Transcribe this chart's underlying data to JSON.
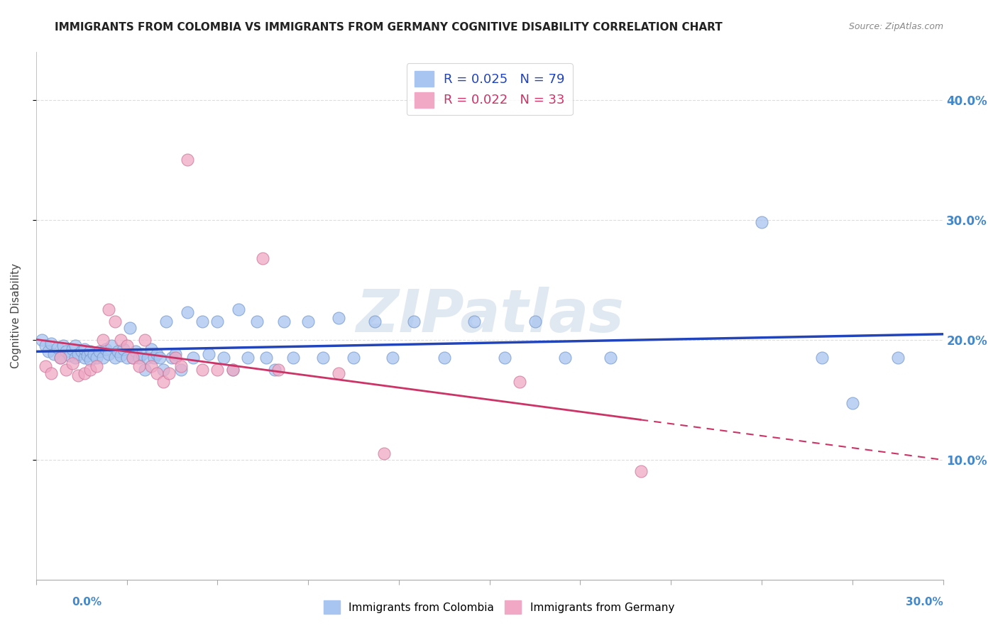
{
  "title": "IMMIGRANTS FROM COLOMBIA VS IMMIGRANTS FROM GERMANY COGNITIVE DISABILITY CORRELATION CHART",
  "source": "Source: ZipAtlas.com",
  "ylabel": "Cognitive Disability",
  "ytick_labels": [
    "10.0%",
    "20.0%",
    "30.0%",
    "40.0%"
  ],
  "ytick_values": [
    0.1,
    0.2,
    0.3,
    0.4
  ],
  "xlim": [
    0.0,
    0.3
  ],
  "ylim": [
    0.0,
    0.44
  ],
  "legend_colombia": "R = 0.025   N = 79",
  "legend_germany": "R = 0.022   N = 33",
  "colombia_color": "#a8c4f0",
  "germany_color": "#f0a8c4",
  "colombia_line_color": "#2244bb",
  "germany_line_color": "#cc3366",
  "colombia_scatter": [
    [
      0.002,
      0.2
    ],
    [
      0.003,
      0.195
    ],
    [
      0.004,
      0.19
    ],
    [
      0.005,
      0.197
    ],
    [
      0.006,
      0.188
    ],
    [
      0.007,
      0.193
    ],
    [
      0.008,
      0.185
    ],
    [
      0.009,
      0.195
    ],
    [
      0.01,
      0.19
    ],
    [
      0.011,
      0.187
    ],
    [
      0.012,
      0.192
    ],
    [
      0.013,
      0.185
    ],
    [
      0.013,
      0.195
    ],
    [
      0.014,
      0.188
    ],
    [
      0.015,
      0.19
    ],
    [
      0.016,
      0.185
    ],
    [
      0.016,
      0.192
    ],
    [
      0.017,
      0.187
    ],
    [
      0.018,
      0.19
    ],
    [
      0.018,
      0.183
    ],
    [
      0.019,
      0.188
    ],
    [
      0.02,
      0.185
    ],
    [
      0.021,
      0.19
    ],
    [
      0.022,
      0.185
    ],
    [
      0.023,
      0.192
    ],
    [
      0.024,
      0.188
    ],
    [
      0.025,
      0.195
    ],
    [
      0.026,
      0.185
    ],
    [
      0.027,
      0.19
    ],
    [
      0.028,
      0.187
    ],
    [
      0.029,
      0.192
    ],
    [
      0.03,
      0.185
    ],
    [
      0.031,
      0.21
    ],
    [
      0.032,
      0.185
    ],
    [
      0.033,
      0.19
    ],
    [
      0.034,
      0.185
    ],
    [
      0.035,
      0.188
    ],
    [
      0.036,
      0.175
    ],
    [
      0.037,
      0.185
    ],
    [
      0.038,
      0.192
    ],
    [
      0.039,
      0.185
    ],
    [
      0.04,
      0.188
    ],
    [
      0.041,
      0.185
    ],
    [
      0.042,
      0.175
    ],
    [
      0.043,
      0.215
    ],
    [
      0.045,
      0.185
    ],
    [
      0.046,
      0.188
    ],
    [
      0.048,
      0.175
    ],
    [
      0.05,
      0.223
    ],
    [
      0.052,
      0.185
    ],
    [
      0.055,
      0.215
    ],
    [
      0.057,
      0.188
    ],
    [
      0.06,
      0.215
    ],
    [
      0.062,
      0.185
    ],
    [
      0.065,
      0.175
    ],
    [
      0.067,
      0.225
    ],
    [
      0.07,
      0.185
    ],
    [
      0.073,
      0.215
    ],
    [
      0.076,
      0.185
    ],
    [
      0.079,
      0.175
    ],
    [
      0.082,
      0.215
    ],
    [
      0.085,
      0.185
    ],
    [
      0.09,
      0.215
    ],
    [
      0.095,
      0.185
    ],
    [
      0.1,
      0.218
    ],
    [
      0.105,
      0.185
    ],
    [
      0.112,
      0.215
    ],
    [
      0.118,
      0.185
    ],
    [
      0.125,
      0.215
    ],
    [
      0.135,
      0.185
    ],
    [
      0.145,
      0.215
    ],
    [
      0.155,
      0.185
    ],
    [
      0.165,
      0.215
    ],
    [
      0.175,
      0.185
    ],
    [
      0.19,
      0.185
    ],
    [
      0.24,
      0.298
    ],
    [
      0.26,
      0.185
    ],
    [
      0.27,
      0.147
    ],
    [
      0.285,
      0.185
    ]
  ],
  "germany_scatter": [
    [
      0.003,
      0.178
    ],
    [
      0.005,
      0.172
    ],
    [
      0.008,
      0.185
    ],
    [
      0.01,
      0.175
    ],
    [
      0.012,
      0.18
    ],
    [
      0.014,
      0.17
    ],
    [
      0.016,
      0.172
    ],
    [
      0.018,
      0.175
    ],
    [
      0.02,
      0.178
    ],
    [
      0.022,
      0.2
    ],
    [
      0.024,
      0.225
    ],
    [
      0.026,
      0.215
    ],
    [
      0.028,
      0.2
    ],
    [
      0.03,
      0.195
    ],
    [
      0.032,
      0.185
    ],
    [
      0.034,
      0.178
    ],
    [
      0.036,
      0.2
    ],
    [
      0.038,
      0.178
    ],
    [
      0.04,
      0.172
    ],
    [
      0.042,
      0.165
    ],
    [
      0.044,
      0.172
    ],
    [
      0.046,
      0.185
    ],
    [
      0.048,
      0.178
    ],
    [
      0.05,
      0.35
    ],
    [
      0.055,
      0.175
    ],
    [
      0.06,
      0.175
    ],
    [
      0.065,
      0.175
    ],
    [
      0.075,
      0.268
    ],
    [
      0.08,
      0.175
    ],
    [
      0.1,
      0.172
    ],
    [
      0.115,
      0.105
    ],
    [
      0.16,
      0.165
    ],
    [
      0.2,
      0.09
    ]
  ],
  "watermark": "ZIPatlas",
  "grid_color": "#dddddd",
  "bg_color": "#ffffff"
}
